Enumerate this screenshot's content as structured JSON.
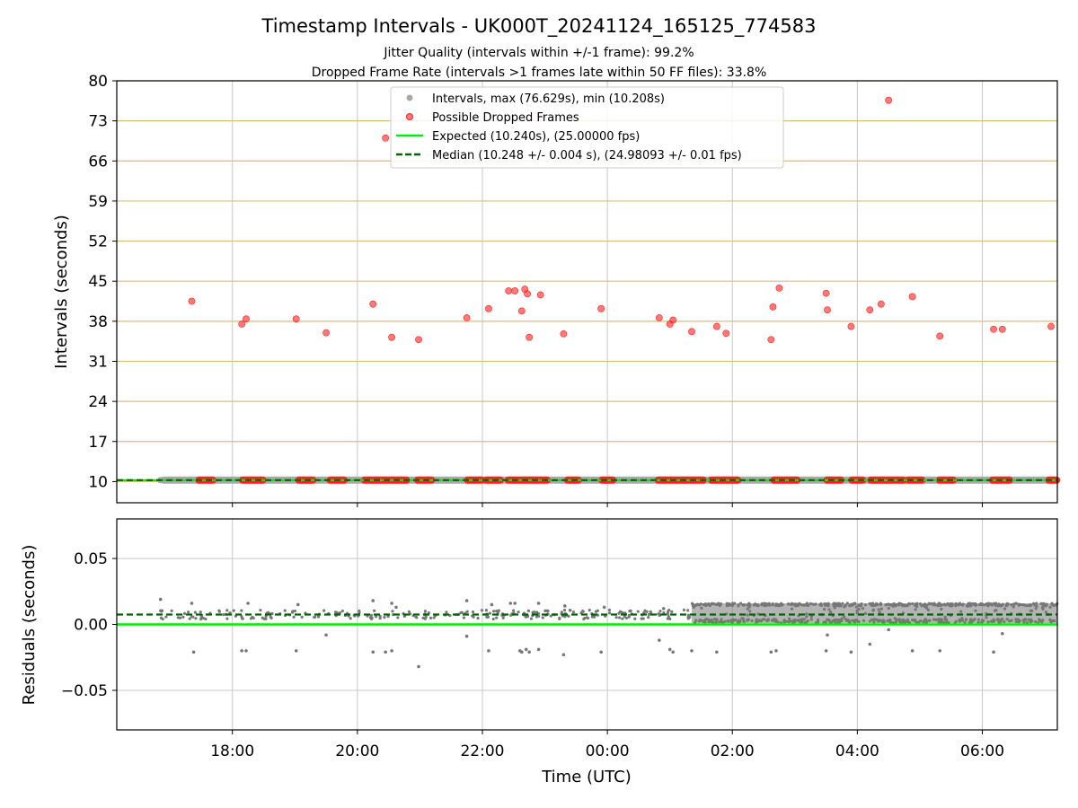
{
  "header": {
    "title": "Timestamp Intervals - UK000T_20241124_165125_774583",
    "subtitle_1": "Jitter Quality (intervals within +/-1 frame): 99.2%",
    "subtitle_2": "Dropped Frame Rate (intervals >1 frames late within 50 FF files): 33.8%"
  },
  "colors": {
    "intervals": "#a9a9a9",
    "dropped": "#ff2020",
    "expected": "#00ee00",
    "median": "#006400",
    "hgrid": "#d9bf73",
    "vgrid": "#c8c8c8",
    "residual_points": "#777777"
  },
  "chart_data": [
    {
      "type": "scatter",
      "panel": "intervals",
      "xlabel": "",
      "ylabel": "Intervals (seconds)",
      "x_unit": "hours since 00:00 UTC (negative = previous day)",
      "xlim": [
        -7.85,
        7.2
      ],
      "ylim": [
        6.3,
        80
      ],
      "yticks": [
        10,
        17,
        24,
        31,
        38,
        45,
        52,
        59,
        66,
        73,
        80
      ],
      "ytick_labels": [
        "10",
        "17",
        "24",
        "31",
        "38",
        "45",
        "52",
        "59",
        "66",
        "73",
        "80"
      ],
      "xticks": [
        -6,
        -4,
        -2,
        0,
        2,
        4,
        6
      ],
      "grid": "on (horizontal gold lines, vertical grey lines)",
      "legend_position": "top-center",
      "legend": [
        "Intervals, max (76.629s), min (10.208s)",
        "Possible Dropped Frames",
        "Expected (10.240s), (25.00000 fps)",
        "Median (10.248 +/- 0.004 s), (24.98093 +/- 0.01 fps)"
      ],
      "expected_value": 10.24,
      "median_value": 10.248,
      "interval_band": {
        "x_start": -7.15,
        "x_end": 7.2,
        "value": 10.25
      },
      "dropped_frames": [
        [
          -6.65,
          41.5
        ],
        [
          -5.85,
          37.5
        ],
        [
          -5.78,
          38.4
        ],
        [
          -4.98,
          38.4
        ],
        [
          -4.5,
          36.0
        ],
        [
          -3.75,
          41.0
        ],
        [
          -3.55,
          70.0
        ],
        [
          -3.45,
          35.2
        ],
        [
          -3.02,
          34.8
        ],
        [
          -2.25,
          38.6
        ],
        [
          -1.9,
          40.2
        ],
        [
          -1.58,
          43.3
        ],
        [
          -1.48,
          43.3
        ],
        [
          -1.37,
          39.8
        ],
        [
          -1.32,
          43.6
        ],
        [
          -1.28,
          42.8
        ],
        [
          -1.25,
          35.2
        ],
        [
          -1.07,
          42.6
        ],
        [
          -0.7,
          35.8
        ],
        [
          -0.1,
          40.2
        ],
        [
          0.83,
          38.6
        ],
        [
          1.0,
          37.5
        ],
        [
          1.05,
          38.2
        ],
        [
          1.35,
          36.2
        ],
        [
          1.75,
          37.1
        ],
        [
          1.9,
          35.9
        ],
        [
          2.62,
          34.8
        ],
        [
          2.65,
          40.5
        ],
        [
          2.75,
          43.8
        ],
        [
          3.5,
          42.9
        ],
        [
          3.52,
          40.0
        ],
        [
          3.9,
          37.1
        ],
        [
          4.2,
          40.0
        ],
        [
          4.38,
          41.0
        ],
        [
          4.5,
          76.6
        ],
        [
          4.88,
          42.3
        ],
        [
          5.32,
          35.4
        ],
        [
          6.18,
          36.6
        ],
        [
          6.32,
          36.6
        ],
        [
          7.1,
          37.1
        ]
      ],
      "dropped_at_baseline": [
        [
          -6.55,
          -6.3
        ],
        [
          -5.85,
          -5.5
        ],
        [
          -4.95,
          -4.7
        ],
        [
          -4.45,
          -4.2
        ],
        [
          -3.9,
          -3.6
        ],
        [
          -3.6,
          -3.2
        ],
        [
          -3.05,
          -2.8
        ],
        [
          -2.25,
          -2.0
        ],
        [
          -1.95,
          -1.7
        ],
        [
          -1.6,
          -0.95
        ],
        [
          -0.65,
          -0.45
        ],
        [
          -0.1,
          0.1
        ],
        [
          0.8,
          1.35
        ],
        [
          1.35,
          1.55
        ],
        [
          1.65,
          2.1
        ],
        [
          2.65,
          3.05
        ],
        [
          3.5,
          3.75
        ],
        [
          3.9,
          4.1
        ],
        [
          4.2,
          4.75
        ],
        [
          4.8,
          5.05
        ],
        [
          5.3,
          5.55
        ],
        [
          6.15,
          6.45
        ],
        [
          7.05,
          7.2
        ]
      ]
    },
    {
      "type": "scatter",
      "panel": "residuals",
      "xlabel": "Time (UTC)",
      "ylabel": "Residuals (seconds)",
      "x_unit": "hours since 00:00 UTC (negative = previous day)",
      "xlim": [
        -7.85,
        7.2
      ],
      "ylim": [
        -0.08,
        0.08
      ],
      "yticks": [
        -0.05,
        0.0,
        0.05
      ],
      "ytick_labels": [
        "−0.05",
        "0.00",
        "0.05"
      ],
      "xticks": [
        -6,
        -4,
        -2,
        0,
        2,
        4,
        6
      ],
      "xtick_labels": [
        "18:00",
        "20:00",
        "22:00",
        "00:00",
        "02:00",
        "04:00",
        "06:00"
      ],
      "grid": "on",
      "expected_line": 0.0,
      "median_line": 0.0075,
      "dense_region": {
        "x_start": 1.35,
        "x_end": 7.2,
        "y_min": 0.001,
        "y_max": 0.016
      },
      "outliers": [
        [
          -7.15,
          0.019
        ],
        [
          -6.62,
          -0.021
        ],
        [
          -6.65,
          0.016
        ],
        [
          -5.85,
          -0.02
        ],
        [
          -5.78,
          -0.02
        ],
        [
          -5.75,
          0.016
        ],
        [
          -4.98,
          -0.02
        ],
        [
          -4.95,
          0.015
        ],
        [
          -4.5,
          -0.008
        ],
        [
          -3.75,
          -0.021
        ],
        [
          -3.75,
          0.018
        ],
        [
          -3.55,
          -0.021
        ],
        [
          -3.45,
          -0.02
        ],
        [
          -3.45,
          0.016
        ],
        [
          -3.38,
          0.013
        ],
        [
          -3.02,
          -0.032
        ],
        [
          -2.25,
          0.018
        ],
        [
          -2.25,
          -0.009
        ],
        [
          -1.9,
          -0.02
        ],
        [
          -1.85,
          0.015
        ],
        [
          -1.55,
          0.016
        ],
        [
          -1.48,
          0.016
        ],
        [
          -1.4,
          -0.02
        ],
        [
          -1.37,
          -0.021
        ],
        [
          -1.3,
          -0.019
        ],
        [
          -1.25,
          -0.021
        ],
        [
          -1.1,
          -0.019
        ],
        [
          -1.1,
          0.016
        ],
        [
          -0.7,
          -0.023
        ],
        [
          -0.68,
          0.014
        ],
        [
          -0.1,
          -0.021
        ],
        [
          -0.05,
          0.013
        ],
        [
          0.83,
          -0.012
        ],
        [
          0.9,
          0.012
        ],
        [
          1.0,
          -0.019
        ],
        [
          1.05,
          -0.021
        ],
        [
          1.35,
          -0.02
        ],
        [
          1.75,
          -0.021
        ],
        [
          2.62,
          -0.021
        ],
        [
          2.7,
          -0.02
        ],
        [
          3.5,
          -0.02
        ],
        [
          3.52,
          -0.008
        ],
        [
          3.9,
          -0.021
        ],
        [
          4.2,
          -0.015
        ],
        [
          4.5,
          -0.004
        ],
        [
          4.88,
          -0.02
        ],
        [
          5.32,
          -0.02
        ],
        [
          6.18,
          -0.021
        ],
        [
          6.32,
          -0.007
        ]
      ]
    }
  ]
}
